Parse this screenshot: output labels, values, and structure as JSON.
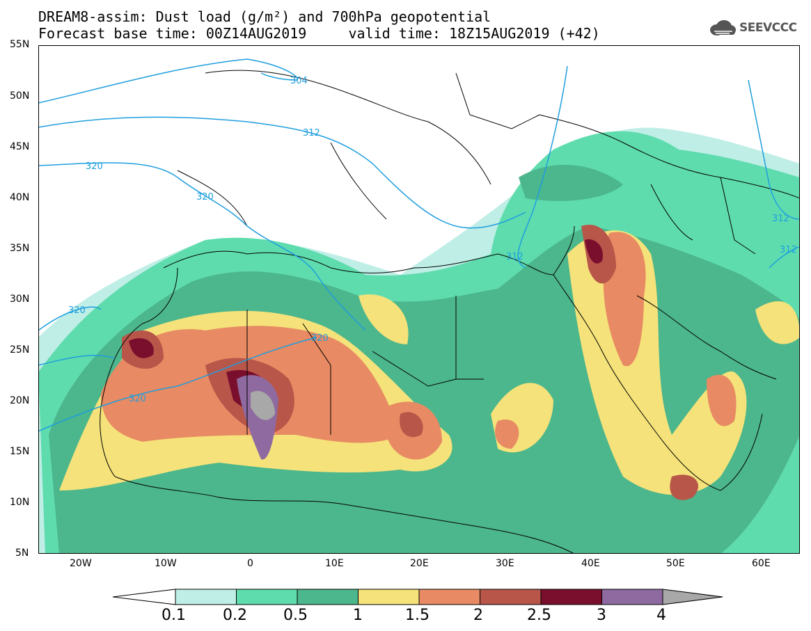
{
  "header": {
    "line1": "DREAM8-assim: Dust load (g/m²) and 700hPa geopotential",
    "line2": "Forecast base time: 00Z14AUG2019     valid time: 18Z15AUG2019 (+42)"
  },
  "logo": {
    "text": "SEEVCCC",
    "icon": "cloud-icon"
  },
  "axes": {
    "lat_labels": [
      "55N",
      "50N",
      "45N",
      "40N",
      "35N",
      "30N",
      "25N",
      "20N",
      "15N",
      "10N",
      "5N"
    ],
    "lon_labels": [
      "20W",
      "10W",
      "0",
      "10E",
      "20E",
      "30E",
      "40E",
      "50E",
      "60E"
    ]
  },
  "contours": [
    {
      "label": "304"
    },
    {
      "label": "312"
    },
    {
      "label": "320"
    },
    {
      "label": "320"
    },
    {
      "label": "320"
    },
    {
      "label": "320"
    },
    {
      "label": "320"
    },
    {
      "label": "312"
    },
    {
      "label": "312"
    },
    {
      "label": "312"
    }
  ],
  "colorbar": {
    "ticks": [
      "0.1",
      "0.2",
      "0.5",
      "1",
      "1.5",
      "2",
      "2.5",
      "3",
      "4"
    ],
    "colors": [
      "#bfeee6",
      "#5fdcae",
      "#4cb68c",
      "#f5e27a",
      "#e88a63",
      "#b8564a",
      "#7a0f2d",
      "#8e6aa0",
      "#a8a8a8"
    ]
  },
  "legend_colors": {
    "white": "#ffffff",
    "contour": "#1e9ede",
    "border": "#000000"
  }
}
